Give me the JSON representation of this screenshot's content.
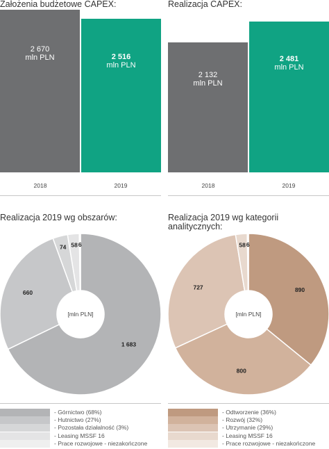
{
  "bar_charts": [
    {
      "title": "Założenia budżetowe CAPEX:",
      "unit": "mln PLN",
      "bars": [
        {
          "year": "2018",
          "value_label": "2 670",
          "value": 2670,
          "color": "#6e6f71",
          "bold": false
        },
        {
          "year": "2019",
          "value_label": "2 516",
          "value": 2516,
          "color": "#10a383",
          "bold": true
        }
      ]
    },
    {
      "title": "Realizacja CAPEX:",
      "unit": "mln PLN",
      "bars": [
        {
          "year": "2018",
          "value_label": "2 132",
          "value": 2132,
          "color": "#6e6f71",
          "bold": false
        },
        {
          "year": "2019",
          "value_label": "2 481",
          "value": 2481,
          "color": "#10a383",
          "bold": true
        }
      ]
    }
  ],
  "donuts": [
    {
      "title": "Realizacja 2019 wg obszarów:",
      "center_label": "[mln PLN]",
      "slices": [
        {
          "label": "1 683",
          "value": 1683,
          "color": "#b3b4b6",
          "legend": "- Górnictwo (68%)"
        },
        {
          "label": "660",
          "value": 660,
          "color": "#c6c7c9",
          "legend": "- Hutnictwo (27%)"
        },
        {
          "label": "74",
          "value": 74,
          "color": "#d6d7d8",
          "legend": "- Pozostała działalność (3%)"
        },
        {
          "label": "58",
          "value": 58,
          "color": "#e4e4e5",
          "legend": "- Leasing MSSF 16"
        },
        {
          "label": "6",
          "value": 6,
          "color": "#efefef",
          "legend": "- Prace rozwojowe - niezakończone"
        }
      ]
    },
    {
      "title": "Realizacja 2019 wg kategorii analitycznych:",
      "center_label": "[mln PLN]",
      "slices": [
        {
          "label": "890",
          "value": 890,
          "color": "#bf9a80",
          "legend": "- Odtworzenie (36%)"
        },
        {
          "label": "800",
          "value": 800,
          "color": "#d1b29c",
          "legend": "- Rozwój (32%)"
        },
        {
          "label": "727",
          "value": 727,
          "color": "#dcc4b4",
          "legend": "- Utrzymanie (29%)"
        },
        {
          "label": "58",
          "value": 58,
          "color": "#e8d9ce",
          "legend": "- Leasing MSSF 16"
        },
        {
          "label": "6",
          "value": 6,
          "color": "#f2e9e2",
          "legend": "- Prace rozwojowe - niezakończone"
        }
      ]
    }
  ],
  "chart_data": [
    {
      "type": "bar",
      "title": "Założenia budżetowe CAPEX:",
      "categories": [
        "2018",
        "2019"
      ],
      "values": [
        2670,
        2516
      ],
      "unit": "mln PLN"
    },
    {
      "type": "bar",
      "title": "Realizacja CAPEX:",
      "categories": [
        "2018",
        "2019"
      ],
      "values": [
        2132,
        2481
      ],
      "unit": "mln PLN"
    },
    {
      "type": "pie",
      "title": "Realizacja 2019 wg obszarów:",
      "categories": [
        "Górnictwo (68%)",
        "Hutnictwo (27%)",
        "Pozostała działalność (3%)",
        "Leasing MSSF 16",
        "Prace rozwojowe - niezakończone"
      ],
      "values": [
        1683,
        660,
        74,
        58,
        6
      ],
      "unit": "[mln PLN]"
    },
    {
      "type": "pie",
      "title": "Realizacja 2019 wg kategorii analitycznych:",
      "categories": [
        "Odtworzenie (36%)",
        "Rozwój (32%)",
        "Utrzymanie (29%)",
        "Leasing MSSF 16",
        "Prace rozwojowe - niezakończone"
      ],
      "values": [
        890,
        800,
        727,
        58,
        6
      ],
      "unit": "[mln PLN]"
    }
  ]
}
